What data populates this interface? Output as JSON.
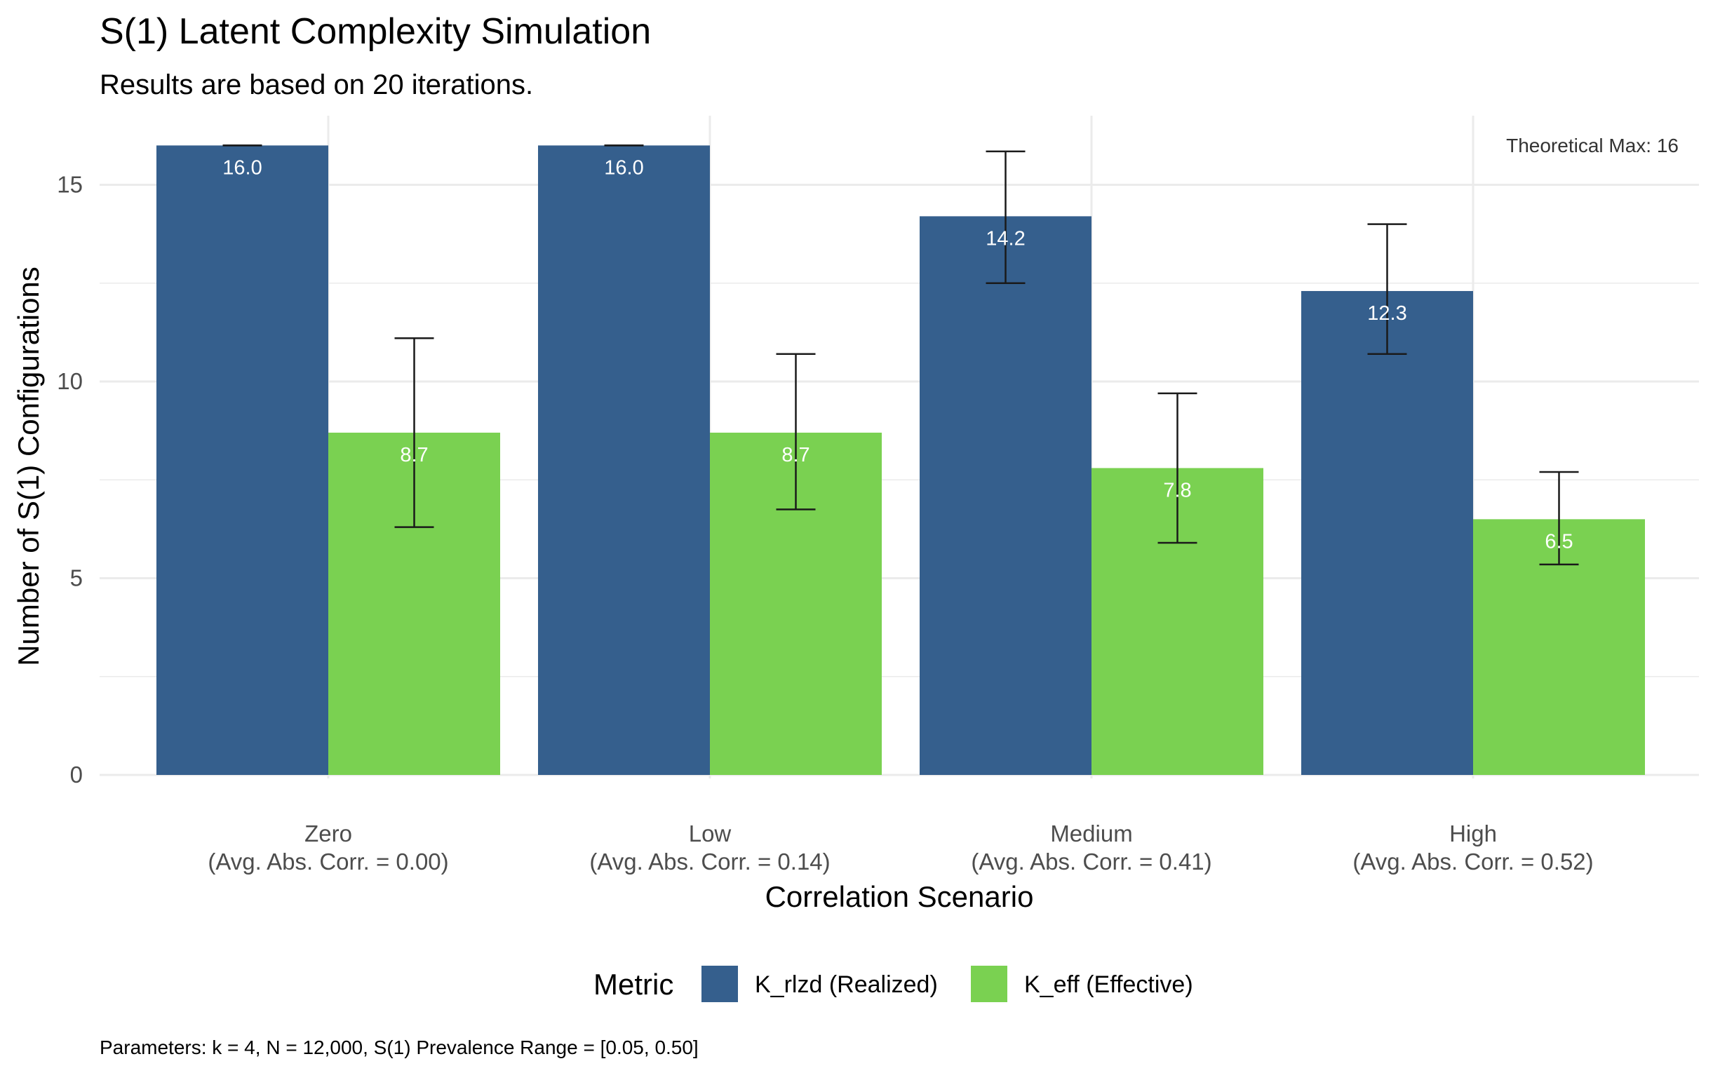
{
  "chart_data": {
    "type": "bar",
    "title": "S(1) Latent Complexity Simulation",
    "subtitle": "Results are based on 20 iterations.",
    "xlabel": "Correlation Scenario",
    "ylabel": "Number of S(1) Configurations",
    "ylim": [
      0,
      16.5
    ],
    "y_ticks": [
      0,
      5,
      10,
      15
    ],
    "grid": true,
    "categories": [
      {
        "name": "Zero",
        "detail": "(Avg. Abs. Corr. = 0.00)"
      },
      {
        "name": "Low",
        "detail": "(Avg. Abs. Corr. = 0.14)"
      },
      {
        "name": "Medium",
        "detail": "(Avg. Abs. Corr. = 0.41)"
      },
      {
        "name": "High",
        "detail": "(Avg. Abs. Corr. = 0.52)"
      }
    ],
    "series": [
      {
        "name": "K_rlzd (Realized)",
        "color": "#355F8D",
        "values": [
          16.0,
          16.0,
          14.2,
          12.3
        ],
        "labels": [
          "16.0",
          "16.0",
          "14.2",
          "12.3"
        ],
        "error_low": [
          16.0,
          16.0,
          12.5,
          10.7
        ],
        "error_high": [
          16.0,
          16.0,
          15.85,
          14.0
        ]
      },
      {
        "name": "K_eff (Effective)",
        "color": "#7AD151",
        "values": [
          8.7,
          8.7,
          7.8,
          6.5
        ],
        "labels": [
          "8.7",
          "8.7",
          "7.8",
          "6.5"
        ],
        "error_low": [
          6.3,
          6.75,
          5.9,
          5.35
        ],
        "error_high": [
          11.1,
          10.7,
          9.7,
          7.7
        ]
      }
    ],
    "annotation": "Theoretical Max: 16",
    "legend_title": "Metric",
    "legend_position": "bottom",
    "caption": "Parameters: k = 4, N = 12,000, S(1) Prevalence Range = [0.05, 0.50]"
  }
}
